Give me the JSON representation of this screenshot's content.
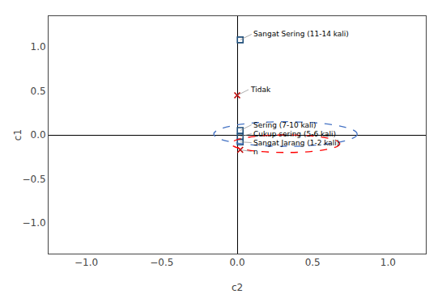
{
  "chart_data": {
    "type": "scatter",
    "xlabel": "c2",
    "ylabel": "c1",
    "xlim": [
      -1.25,
      1.25
    ],
    "ylim": [
      -1.35,
      1.35
    ],
    "xticks": [
      {
        "value": -1.0,
        "label": "−1.0"
      },
      {
        "value": -0.5,
        "label": "−0.5"
      },
      {
        "value": 0.0,
        "label": "0.0"
      },
      0.5,
      {
        "value": 1.0,
        "label": "1.0"
      }
    ],
    "yticks": [
      {
        "value": -1.0,
        "label": "−1.0"
      },
      {
        "value": -0.5,
        "label": "−0.5"
      },
      {
        "value": 0.0,
        "label": "0.0"
      },
      0.5,
      {
        "value": 1.0,
        "label": "1.0"
      }
    ],
    "grid": false,
    "series": [
      {
        "color": "#1F4E79",
        "marker": "square",
        "x": [
          0.02,
          0.02,
          0.02,
          0.02
        ],
        "y": [
          1.08,
          0.05,
          -0.02,
          -0.08
        ],
        "labels": [
          "Sangat Sering (11-14 kali)",
          "Sering (7-10 kali)",
          "Cukup sering (5-6 kali)",
          "Sangat Jarang (1-2 kali)"
        ]
      },
      {
        "color": "#C00000",
        "marker": "x",
        "x": [
          0.0,
          0.02
        ],
        "y": [
          0.45,
          -0.17
        ],
        "labels": [
          "Tidak",
          "n"
        ]
      }
    ],
    "ellipses": [
      {
        "cx": 0.32,
        "cy": 0.01,
        "width": 0.95,
        "height": 0.28,
        "color": "#4472C4",
        "line_style": "dashed"
      },
      {
        "cx": 0.32,
        "cy": -0.1,
        "width": 0.72,
        "height": 0.2,
        "color": "#FF0000",
        "line_style": "dashed"
      }
    ]
  }
}
